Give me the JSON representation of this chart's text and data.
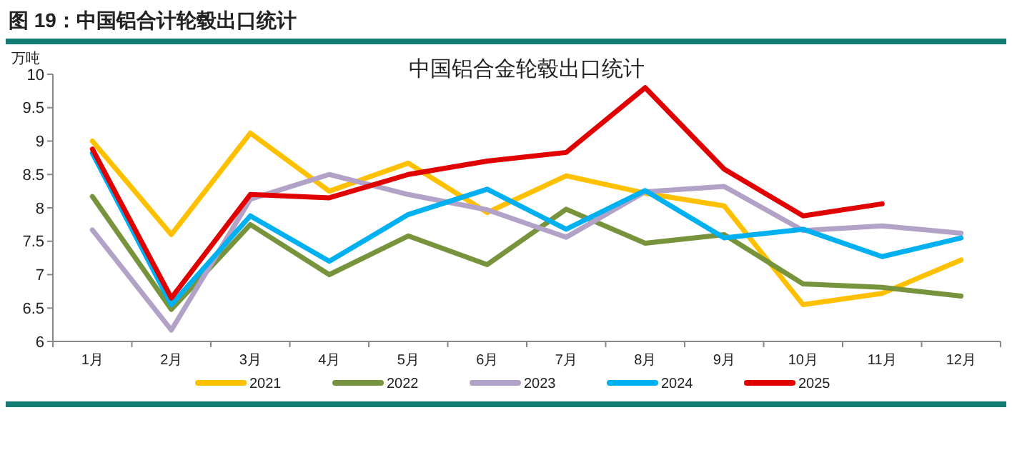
{
  "chart_data": {
    "type": "line",
    "title": "中国铝合金轮毂出口统计",
    "annotations": [
      "图 19：中国铝合计轮毂出口统计"
    ],
    "ylabel": "万吨",
    "categories": [
      "1月",
      "2月",
      "3月",
      "4月",
      "5月",
      "6月",
      "7月",
      "8月",
      "9月",
      "10月",
      "11月",
      "12月"
    ],
    "ylim": [
      6,
      10
    ],
    "yticks": [
      6,
      6.5,
      7,
      7.5,
      8,
      8.5,
      9,
      9.5,
      10
    ],
    "grid": false,
    "legend": "bottom",
    "marker": "none",
    "line_style": "solid",
    "series": [
      {
        "name": "2021",
        "color": "#ffc000",
        "values": [
          9.0,
          7.6,
          9.12,
          8.25,
          8.67,
          7.93,
          8.48,
          8.22,
          8.03,
          6.55,
          6.72,
          7.22
        ]
      },
      {
        "name": "2022",
        "color": "#77933c",
        "values": [
          8.17,
          6.48,
          7.75,
          7.0,
          7.58,
          7.15,
          7.98,
          7.47,
          7.6,
          6.86,
          6.81,
          6.68
        ]
      },
      {
        "name": "2023",
        "color": "#b3a2c7",
        "values": [
          7.67,
          6.17,
          8.13,
          8.5,
          8.2,
          7.97,
          7.56,
          8.24,
          8.32,
          7.66,
          7.73,
          7.62
        ]
      },
      {
        "name": "2024",
        "color": "#00b0f0",
        "values": [
          8.82,
          6.55,
          7.88,
          7.2,
          7.9,
          8.28,
          7.68,
          8.26,
          7.55,
          7.68,
          7.27,
          7.55
        ]
      },
      {
        "name": "2025",
        "color": "#e00000",
        "values": [
          8.88,
          6.65,
          8.2,
          8.15,
          8.5,
          8.7,
          8.83,
          9.8,
          8.58,
          7.88,
          8.06,
          null
        ]
      }
    ]
  }
}
